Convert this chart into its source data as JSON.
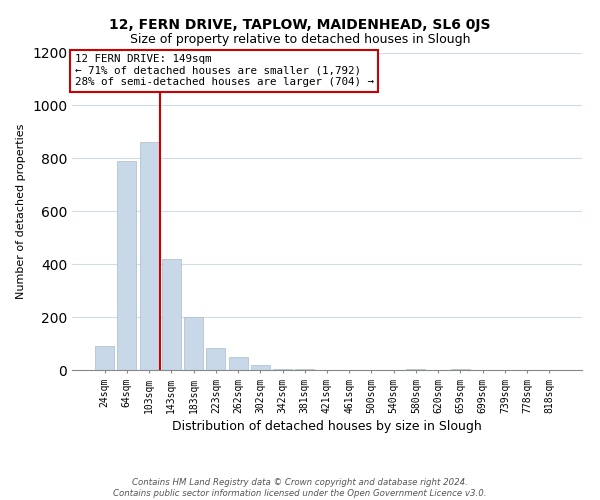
{
  "title": "12, FERN DRIVE, TAPLOW, MAIDENHEAD, SL6 0JS",
  "subtitle": "Size of property relative to detached houses in Slough",
  "xlabel": "Distribution of detached houses by size in Slough",
  "ylabel": "Number of detached properties",
  "bar_labels": [
    "24sqm",
    "64sqm",
    "103sqm",
    "143sqm",
    "183sqm",
    "223sqm",
    "262sqm",
    "302sqm",
    "342sqm",
    "381sqm",
    "421sqm",
    "461sqm",
    "500sqm",
    "540sqm",
    "580sqm",
    "620sqm",
    "659sqm",
    "699sqm",
    "739sqm",
    "778sqm",
    "818sqm"
  ],
  "bar_values": [
    90,
    790,
    860,
    420,
    200,
    85,
    50,
    20,
    5,
    2,
    1,
    0,
    0,
    0,
    5,
    0,
    5,
    0,
    0,
    0,
    0
  ],
  "bar_color": "#c8d8e8",
  "vline_color": "#cc0000",
  "vline_index": 3,
  "annotation_text": "12 FERN DRIVE: 149sqm\n← 71% of detached houses are smaller (1,792)\n28% of semi-detached houses are larger (704) →",
  "annotation_box_color": "white",
  "annotation_box_edge": "#cc0000",
  "ylim": [
    0,
    1200
  ],
  "yticks": [
    0,
    200,
    400,
    600,
    800,
    1000,
    1200
  ],
  "footer_line1": "Contains HM Land Registry data © Crown copyright and database right 2024.",
  "footer_line2": "Contains public sector information licensed under the Open Government Licence v3.0.",
  "bg_color": "white",
  "grid_color": "#d0dce8"
}
